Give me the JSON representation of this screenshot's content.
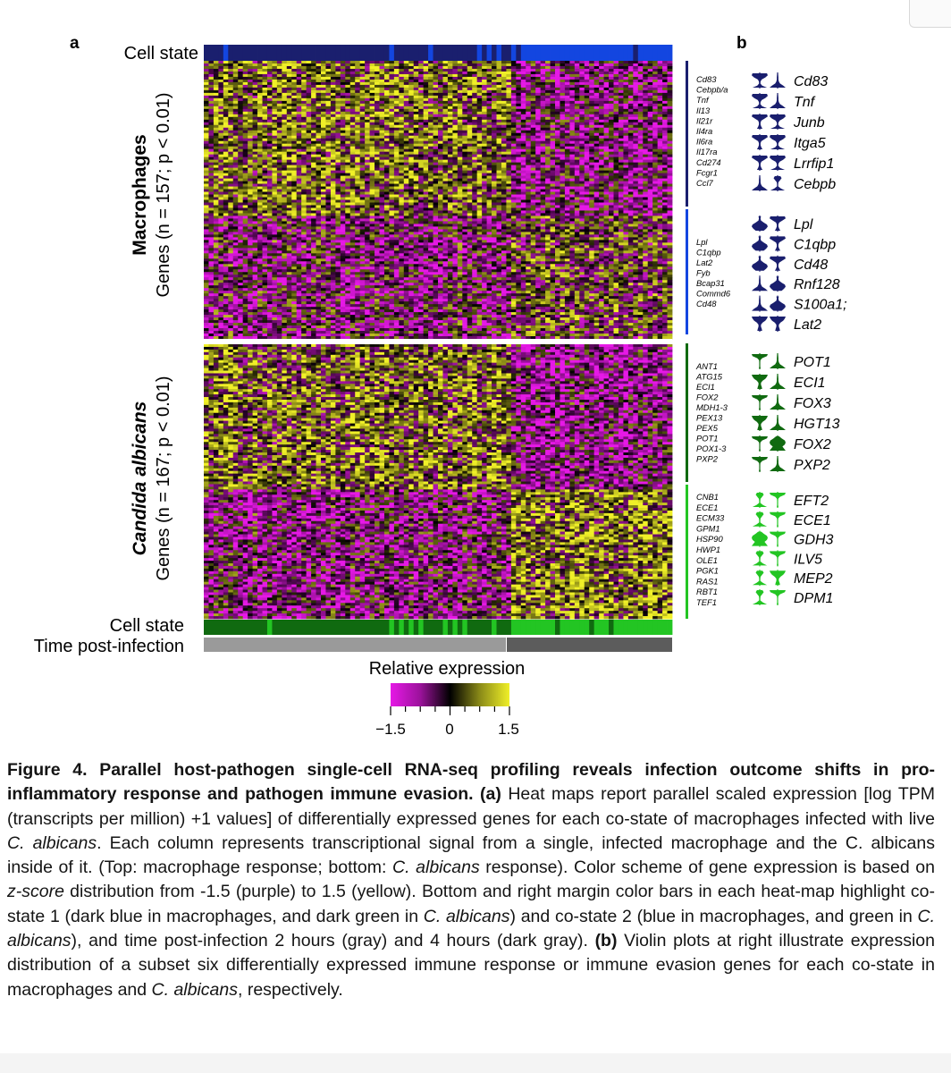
{
  "figure": {
    "panel_a_label": "a",
    "panel_b_label": "b",
    "cell_state_top_label": "Cell state",
    "macro_title": "Macrophages",
    "macro_subtitle": "Genes (n = 157; p < 0.01)",
    "candida_title": "Candida albicans",
    "candida_subtitle": "Genes (n = 167; p < 0.01)",
    "cell_state_bottom_label": "Cell state",
    "time_label": "Time post-infection",
    "colorbar_title": "Relative expression",
    "colorbar_ticks": [
      "−1.5",
      "0",
      "1.5"
    ],
    "macro_genes_group1": [
      "Cd83",
      "Cebpb/a",
      "Tnf",
      "Il13",
      "Il21r",
      "Il4ra",
      "Il6ra",
      "Il17ra",
      "Cd274",
      "Fcgr1",
      "Ccl7"
    ],
    "macro_genes_group2": [
      "Lpl",
      "C1qbp",
      "Lat2",
      "Fyb",
      "Bcap31",
      "Commd6",
      "Cd48"
    ],
    "candida_genes_group1": [
      "ANT1",
      "ATG15",
      "ECI1",
      "FOX2",
      "MDH1-3",
      "PEX13",
      "PEX5",
      "POT1",
      "POX1-3",
      "PXP2"
    ],
    "candida_genes_group2": [
      "CNB1",
      "ECE1",
      "ECM33",
      "GPM1",
      "HSP90",
      "HWP1",
      "OLE1",
      "PGK1",
      "RAS1",
      "RBT1",
      "TEF1"
    ],
    "violin_macro1": [
      "Cd83",
      "Tnf",
      "Junb",
      "Itga5",
      "Lrrfip1",
      "Cebpb"
    ],
    "violin_macro2": [
      "Lpl",
      "C1qbp",
      "Cd48",
      "Rnf128",
      "S100a1;",
      "Lat2"
    ],
    "violin_candida1": [
      "POT1",
      "ECI1",
      "FOX3",
      "HGT13",
      "FOX2",
      "PXP2"
    ],
    "violin_candida2": [
      "EFT2",
      "ECE1",
      "GDH3",
      "ILV5",
      "MEP2",
      "DPM1"
    ]
  },
  "colors": {
    "dark_blue": "#1a1f6e",
    "blue": "#1346e0",
    "dark_green": "#106a10",
    "green": "#23c523",
    "gray": "#9a9a9a",
    "dark_gray": "#5c5c5c",
    "low": "#e619e6",
    "mid": "#000000",
    "high": "#f0f028"
  },
  "caption": {
    "figure_label": "Figure 4. Parallel host-pathogen single-cell RNA-seq profiling reveals infection outcome shifts in pro-inflammatory response and pathogen immune evasion",
    "part_a": "(a)",
    "t1": " Heat maps report parallel scaled expression [log TPM (transcripts per million) +1 values] of differentially expressed genes for each co-state of macrophages infected with live ",
    "calb1": "C. albicans",
    "t2": ". Each column represents transcriptional signal from a single, infected macrophage and the C. albicans inside of it. (Top: macrophage response; bottom: ",
    "calb2": "C. albicans",
    "t3": " response). Color scheme of gene expression is based on ",
    "zscore": "z-score",
    "t4": " distribution from -1.5 (purple) to 1.5 (yellow). Bottom and right margin color bars in each heat-map highlight co-state 1 (dark blue in macrophages, and dark green in ",
    "calb3": "C. albicans",
    "t5": ") and co-state 2 (blue in macrophages, and green in ",
    "calb4": "C. albicans",
    "t6": "), and time post-infection 2 hours (gray) and 4 hours (dark gray). ",
    "part_b": "(b)",
    "t7": " Violin plots at right illustrate expression distribution of a subset six differentially expressed immune response or immune evasion genes for each co-state in macrophages and ",
    "calb5": "C. albicans",
    "t8": ", respectively."
  }
}
